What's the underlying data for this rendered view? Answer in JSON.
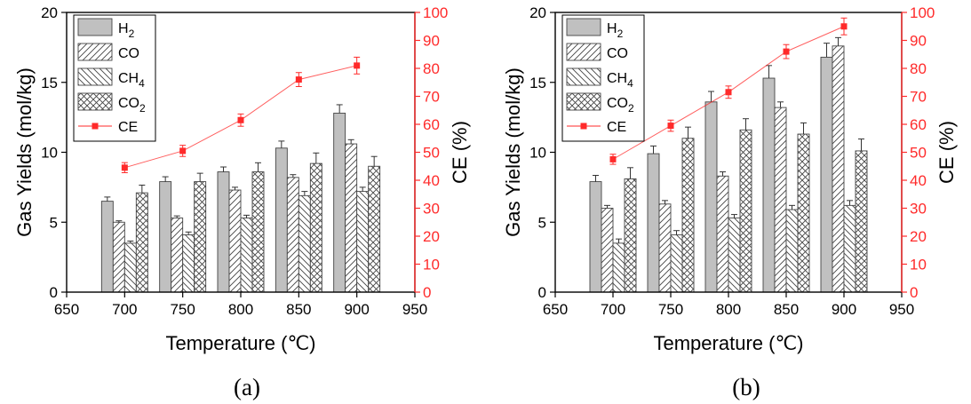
{
  "chart_data": [
    {
      "type": "bar",
      "panel_label": "(a)",
      "xlabel": "Temperature (℃)",
      "ylabel": "Gas Yields (mol/kg)",
      "y2label": "CE (%)",
      "xlim": [
        650,
        950
      ],
      "xticks": [
        650,
        700,
        750,
        800,
        850,
        900,
        950
      ],
      "ylim": [
        0,
        20
      ],
      "yticks": [
        0,
        5,
        10,
        15,
        20
      ],
      "y2lim": [
        0,
        100
      ],
      "y2ticks": [
        0,
        10,
        20,
        30,
        40,
        50,
        60,
        70,
        80,
        90,
        100
      ],
      "categories": [
        700,
        750,
        800,
        850,
        900
      ],
      "series": [
        {
          "name": "H2",
          "label_main": "H",
          "label_sub": "2",
          "pattern": "solid",
          "values": [
            6.5,
            7.9,
            8.6,
            10.3,
            12.8
          ],
          "errors": [
            0.3,
            0.35,
            0.35,
            0.5,
            0.6
          ]
        },
        {
          "name": "CO",
          "label_main": "CO",
          "label_sub": "",
          "pattern": "diag-right",
          "values": [
            5.0,
            5.3,
            7.3,
            8.2,
            10.6
          ],
          "errors": [
            0.1,
            0.15,
            0.2,
            0.2,
            0.3
          ]
        },
        {
          "name": "CH4",
          "label_main": "CH",
          "label_sub": "4",
          "pattern": "diag-left",
          "values": [
            3.5,
            4.1,
            5.3,
            6.9,
            7.2
          ],
          "errors": [
            0.15,
            0.2,
            0.2,
            0.3,
            0.3
          ]
        },
        {
          "name": "CO2",
          "label_main": "CO",
          "label_sub": "2",
          "pattern": "crosshatch",
          "values": [
            7.1,
            7.9,
            8.6,
            9.2,
            9.0
          ],
          "errors": [
            0.55,
            0.6,
            0.65,
            0.75,
            0.7
          ]
        }
      ],
      "line_series": {
        "name": "CE",
        "axis": "right",
        "color": "#ff2a2a",
        "x": [
          700,
          750,
          800,
          850,
          900
        ],
        "values": [
          44.5,
          50.5,
          61.5,
          76,
          81
        ],
        "errors": [
          1.8,
          2.0,
          2.2,
          2.5,
          3.0
        ]
      },
      "legend": "top-left"
    },
    {
      "type": "bar",
      "panel_label": "(b)",
      "xlabel": "Temperature (℃)",
      "ylabel": "Gas Yields (mol/kg)",
      "y2label": "CE (%)",
      "xlim": [
        650,
        950
      ],
      "xticks": [
        650,
        700,
        750,
        800,
        850,
        900,
        950
      ],
      "ylim": [
        0,
        20
      ],
      "yticks": [
        0,
        5,
        10,
        15,
        20
      ],
      "y2lim": [
        0,
        100
      ],
      "y2ticks": [
        0,
        10,
        20,
        30,
        40,
        50,
        60,
        70,
        80,
        90,
        100
      ],
      "categories": [
        700,
        750,
        800,
        850,
        900
      ],
      "series": [
        {
          "name": "H2",
          "label_main": "H",
          "label_sub": "2",
          "pattern": "solid",
          "values": [
            7.9,
            9.9,
            13.6,
            15.3,
            16.8
          ],
          "errors": [
            0.45,
            0.55,
            0.75,
            0.9,
            1.0
          ]
        },
        {
          "name": "CO",
          "label_main": "CO",
          "label_sub": "",
          "pattern": "diag-right",
          "values": [
            6.0,
            6.3,
            8.3,
            13.2,
            17.6
          ],
          "errors": [
            0.2,
            0.25,
            0.3,
            0.4,
            0.6
          ]
        },
        {
          "name": "CH4",
          "label_main": "CH",
          "label_sub": "4",
          "pattern": "diag-left",
          "values": [
            3.5,
            4.1,
            5.3,
            5.9,
            6.2
          ],
          "errors": [
            0.3,
            0.3,
            0.25,
            0.3,
            0.35
          ]
        },
        {
          "name": "CO2",
          "label_main": "CO",
          "label_sub": "2",
          "pattern": "crosshatch",
          "values": [
            8.1,
            11.0,
            11.6,
            11.3,
            10.1
          ],
          "errors": [
            0.8,
            0.8,
            0.8,
            0.8,
            0.85
          ]
        }
      ],
      "line_series": {
        "name": "CE",
        "axis": "right",
        "color": "#ff2a2a",
        "x": [
          700,
          750,
          800,
          850,
          900
        ],
        "values": [
          47.5,
          59.5,
          71.5,
          86,
          95
        ],
        "errors": [
          1.8,
          2.0,
          2.2,
          2.5,
          3.0
        ]
      },
      "legend": "top-left"
    }
  ]
}
